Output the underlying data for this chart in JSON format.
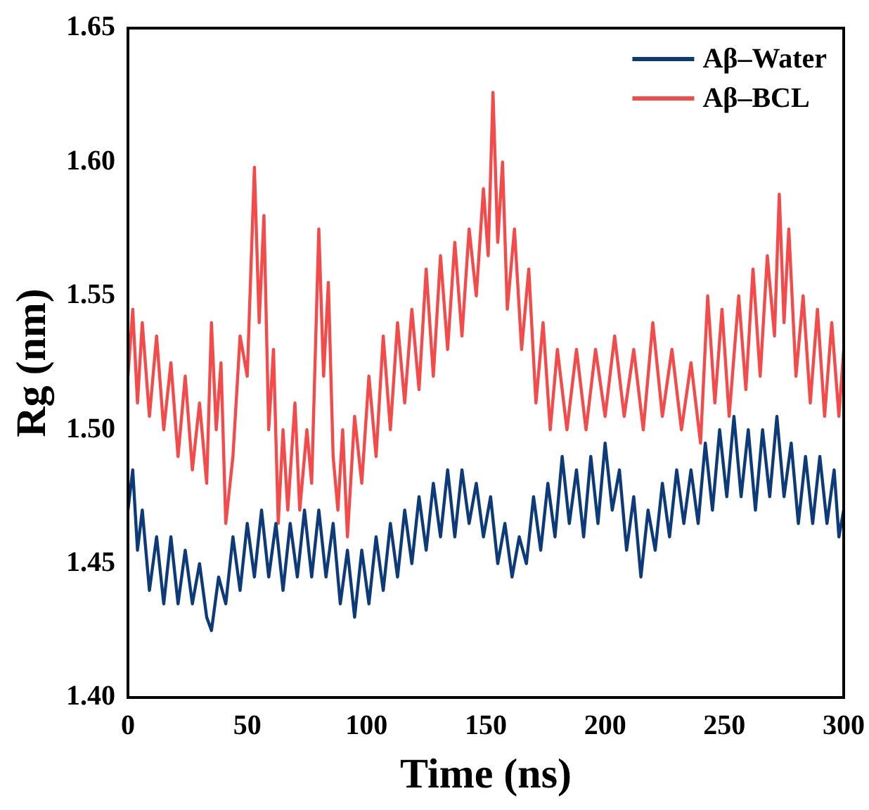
{
  "chart_data": {
    "type": "line",
    "xlabel": "Time (ns)",
    "ylabel": "Rg (nm)",
    "xlim": [
      0,
      300
    ],
    "xticks": [
      0,
      50,
      100,
      150,
      200,
      250,
      300
    ],
    "ylim": [
      1.4,
      1.65
    ],
    "yticks": [
      {
        "value": 1.4,
        "label": "1.40"
      },
      {
        "value": 1.45,
        "label": "1.45"
      },
      {
        "value": 1.5,
        "label": "1.50"
      },
      {
        "value": 1.55,
        "label": "1.55"
      },
      {
        "value": 1.6,
        "label": "1.60"
      },
      {
        "value": 1.65,
        "label": "1.65"
      }
    ],
    "grid": false,
    "legend": "top right",
    "marker": "none",
    "line_style": "solid",
    "series": [
      {
        "name": "Aβ–Water",
        "color": "#0d3b7a",
        "x": [
          0,
          2,
          4,
          6,
          9,
          12,
          15,
          18,
          21,
          24,
          27,
          30,
          33,
          35,
          38,
          41,
          44,
          47,
          50,
          53,
          56,
          59,
          62,
          65,
          68,
          71,
          74,
          77,
          80,
          83,
          86,
          89,
          92,
          95,
          98,
          101,
          104,
          107,
          110,
          113,
          116,
          119,
          122,
          125,
          128,
          131,
          134,
          137,
          140,
          143,
          146,
          149,
          152,
          155,
          158,
          161,
          164,
          167,
          170,
          173,
          176,
          179,
          182,
          185,
          188,
          191,
          194,
          197,
          200,
          203,
          206,
          209,
          212,
          215,
          218,
          221,
          224,
          227,
          230,
          233,
          236,
          239,
          242,
          245,
          248,
          251,
          254,
          257,
          260,
          263,
          266,
          269,
          272,
          275,
          278,
          281,
          284,
          287,
          290,
          293,
          296,
          298,
          300
        ],
        "values": [
          1.47,
          1.485,
          1.455,
          1.47,
          1.44,
          1.46,
          1.435,
          1.46,
          1.435,
          1.455,
          1.435,
          1.45,
          1.43,
          1.425,
          1.445,
          1.435,
          1.46,
          1.44,
          1.465,
          1.445,
          1.47,
          1.445,
          1.465,
          1.44,
          1.465,
          1.445,
          1.47,
          1.445,
          1.47,
          1.445,
          1.465,
          1.435,
          1.455,
          1.43,
          1.455,
          1.435,
          1.46,
          1.44,
          1.465,
          1.445,
          1.47,
          1.45,
          1.475,
          1.455,
          1.48,
          1.46,
          1.485,
          1.46,
          1.485,
          1.465,
          1.48,
          1.46,
          1.475,
          1.45,
          1.465,
          1.445,
          1.46,
          1.45,
          1.475,
          1.455,
          1.48,
          1.46,
          1.49,
          1.465,
          1.485,
          1.46,
          1.49,
          1.465,
          1.495,
          1.47,
          1.485,
          1.455,
          1.475,
          1.445,
          1.47,
          1.455,
          1.48,
          1.46,
          1.485,
          1.465,
          1.485,
          1.465,
          1.495,
          1.47,
          1.5,
          1.475,
          1.505,
          1.475,
          1.5,
          1.47,
          1.5,
          1.475,
          1.505,
          1.475,
          1.495,
          1.465,
          1.49,
          1.465,
          1.49,
          1.465,
          1.485,
          1.46,
          1.47
        ]
      },
      {
        "name": "Aβ–BCL",
        "color": "#f44a4a",
        "x": [
          0,
          2,
          4,
          6,
          9,
          12,
          15,
          18,
          21,
          24,
          27,
          30,
          33,
          35,
          37,
          39,
          41,
          44,
          47,
          50,
          53,
          55,
          57,
          59,
          61,
          63,
          65,
          67,
          70,
          72,
          75,
          77,
          80,
          82,
          84,
          86,
          88,
          90,
          92,
          95,
          98,
          101,
          104,
          107,
          110,
          113,
          116,
          119,
          122,
          125,
          128,
          131,
          134,
          137,
          140,
          143,
          146,
          149,
          151,
          153,
          155,
          157,
          159,
          162,
          165,
          168,
          171,
          174,
          177,
          180,
          184,
          188,
          192,
          196,
          200,
          204,
          208,
          212,
          216,
          220,
          224,
          228,
          232,
          236,
          240,
          243,
          246,
          249,
          252,
          256,
          259,
          262,
          265,
          268,
          271,
          273,
          275,
          277,
          280,
          283,
          286,
          289,
          292,
          295,
          298,
          300
        ],
        "values": [
          1.52,
          1.545,
          1.51,
          1.54,
          1.505,
          1.535,
          1.5,
          1.525,
          1.49,
          1.52,
          1.485,
          1.51,
          1.48,
          1.54,
          1.5,
          1.525,
          1.465,
          1.49,
          1.535,
          1.52,
          1.598,
          1.54,
          1.58,
          1.5,
          1.53,
          1.465,
          1.5,
          1.47,
          1.51,
          1.47,
          1.5,
          1.48,
          1.575,
          1.52,
          1.555,
          1.49,
          1.47,
          1.5,
          1.46,
          1.505,
          1.48,
          1.52,
          1.49,
          1.535,
          1.5,
          1.54,
          1.51,
          1.545,
          1.515,
          1.56,
          1.52,
          1.565,
          1.53,
          1.57,
          1.535,
          1.575,
          1.55,
          1.59,
          1.565,
          1.626,
          1.57,
          1.6,
          1.545,
          1.575,
          1.53,
          1.56,
          1.51,
          1.54,
          1.5,
          1.53,
          1.5,
          1.53,
          1.5,
          1.53,
          1.505,
          1.535,
          1.505,
          1.53,
          1.5,
          1.54,
          1.505,
          1.53,
          1.5,
          1.525,
          1.495,
          1.55,
          1.51,
          1.545,
          1.505,
          1.55,
          1.515,
          1.56,
          1.52,
          1.565,
          1.535,
          1.588,
          1.54,
          1.575,
          1.52,
          1.55,
          1.51,
          1.545,
          1.505,
          1.54,
          1.505,
          1.53
        ]
      }
    ]
  }
}
